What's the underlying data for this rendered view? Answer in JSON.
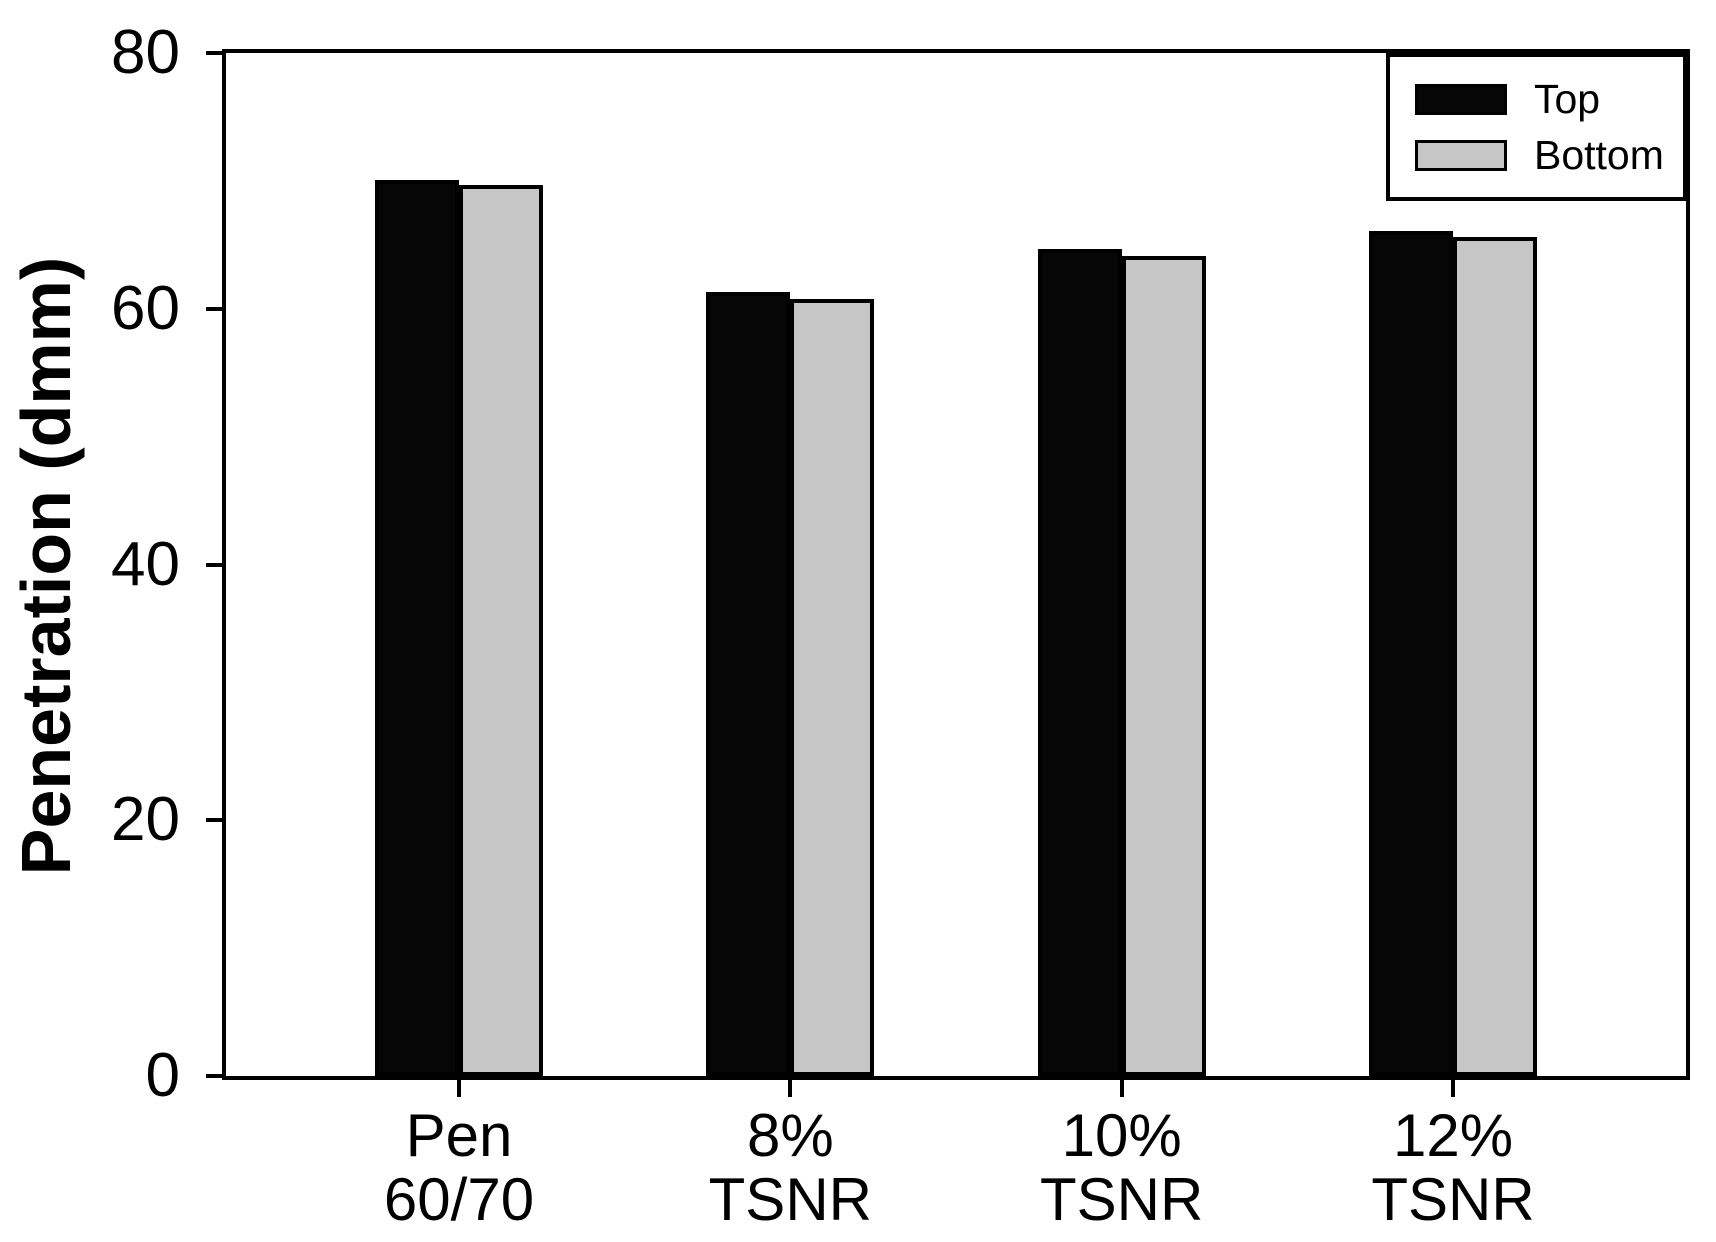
{
  "chart_data": {
    "type": "bar",
    "title": "",
    "xlabel": "",
    "ylabel": "Penetration (dmm)",
    "ylim": [
      0,
      80
    ],
    "yticks": [
      0,
      20,
      40,
      60,
      80
    ],
    "grid": false,
    "legend_position": "top-right",
    "categories": [
      [
        "Pen",
        "60/70"
      ],
      [
        "8%",
        "TSNR"
      ],
      [
        "10%",
        "TSNR"
      ],
      [
        "12%",
        "TSNR"
      ]
    ],
    "series": [
      {
        "name": "Top",
        "color": "#060606",
        "values": [
          70.1,
          61.3,
          64.7,
          66.1
        ]
      },
      {
        "name": "Bottom",
        "color": "#c6c6c6",
        "values": [
          69.7,
          60.8,
          64.1,
          65.6
        ]
      }
    ],
    "colors": {
      "axis": "#000000",
      "bar_border": "#000000",
      "background": "#ffffff"
    }
  }
}
